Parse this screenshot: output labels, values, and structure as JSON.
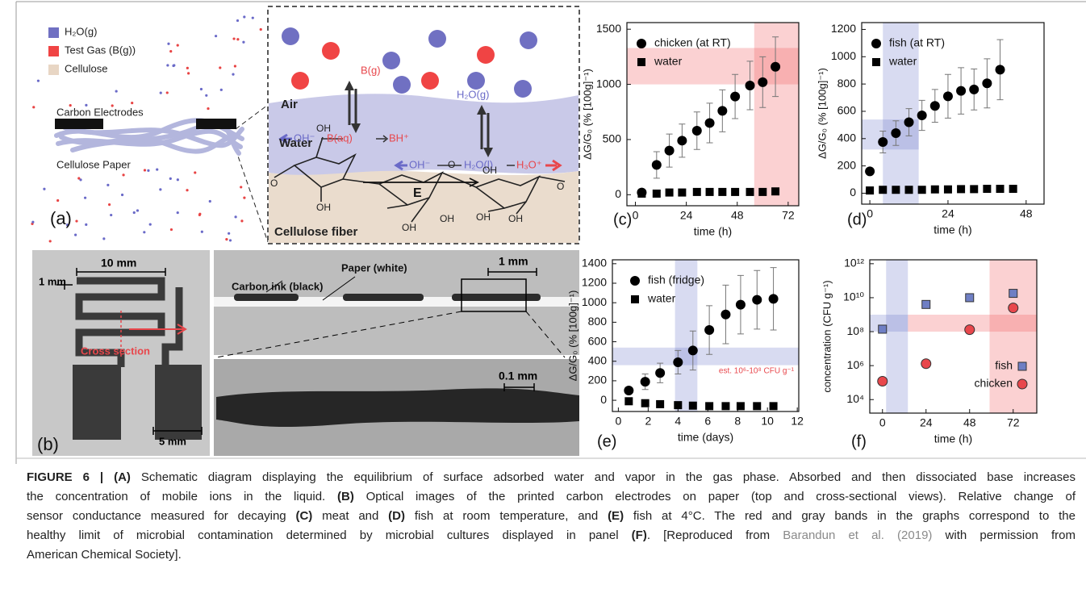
{
  "figure_a": {
    "legend": [
      "H₂O(g)",
      "Test Gas (B(g))",
      "Cellulose"
    ],
    "labels": [
      "Carbon Electrodes",
      "Cellulose Paper"
    ],
    "panel_label": "(a)",
    "zoom_labels": [
      "Air",
      "Water",
      "Cellulose fiber"
    ],
    "species": [
      "B(g)",
      "B(aq)",
      "BH⁺",
      "OH⁻",
      "H₂O(g)",
      "OH⁻",
      "H₂O(l)",
      "H₃O⁺",
      "E"
    ],
    "molecule_labels": [
      "OH",
      "O",
      "OH",
      "OH",
      "O",
      "OH",
      "OH",
      "OH",
      "OH",
      "O"
    ]
  },
  "figure_b": {
    "labels": [
      "10 mm",
      "1 mm",
      "Cross section",
      "5 mm",
      "Paper (white)",
      "Carbon ink (black)",
      "1 mm",
      "0.1 mm"
    ],
    "panel_label": "(b)"
  },
  "chart_data": [
    {
      "type": "scatter",
      "panel_label": "(c)",
      "xlabel": "time (h)",
      "ylabel": "ΔG/G₀ (% [100g]⁻¹)",
      "xlim": [
        -4,
        77
      ],
      "ylim": [
        -100,
        1560
      ],
      "xticks": [
        0,
        24,
        48,
        72
      ],
      "yticks": [
        0,
        500,
        1000,
        1500
      ],
      "legend": "upper left",
      "bands": [
        {
          "y": [
            1000,
            1330
          ],
          "color": "rgba(240,90,95,0.28)"
        },
        {
          "x": [
            56,
            77
          ],
          "color": "rgba(240,90,95,0.28)"
        }
      ],
      "series": [
        {
          "name": "chicken (at RT)",
          "marker": "circle",
          "color": "#000000",
          "x": [
            3,
            10,
            16,
            22,
            29,
            35,
            41,
            47,
            54,
            60,
            66
          ],
          "values": [
            20,
            270,
            400,
            490,
            580,
            650,
            760,
            890,
            990,
            1020,
            1160
          ],
          "errors": [
            10,
            120,
            150,
            150,
            170,
            180,
            190,
            200,
            220,
            230,
            270
          ]
        },
        {
          "name": "water",
          "marker": "square",
          "color": "#000000",
          "x": [
            3,
            10,
            16,
            22,
            29,
            35,
            41,
            47,
            54,
            60,
            66
          ],
          "values": [
            10,
            10,
            20,
            20,
            25,
            25,
            25,
            25,
            25,
            25,
            30
          ]
        }
      ]
    },
    {
      "type": "scatter",
      "panel_label": "(d)",
      "xlabel": "time (h)",
      "ylabel": "ΔG/G₀ (% [100g]⁻¹)",
      "xlim": [
        -2.5,
        53.5
      ],
      "ylim": [
        -80,
        1250
      ],
      "xticks": [
        0,
        24,
        48
      ],
      "yticks": [
        0,
        200,
        400,
        600,
        800,
        1000,
        1200
      ],
      "legend": "upper left",
      "bands": [
        {
          "y": [
            320,
            540
          ],
          "x": [
            -2.5,
            15
          ],
          "color": "rgba(100,110,200,0.25)"
        },
        {
          "x": [
            4,
            15
          ],
          "color": "rgba(100,110,200,0.25)"
        }
      ],
      "series": [
        {
          "name": "fish (at RT)",
          "marker": "circle",
          "color": "#000000",
          "x": [
            0,
            4,
            8,
            12,
            16,
            20,
            24,
            28,
            32,
            36,
            40
          ],
          "values": [
            160,
            375,
            440,
            520,
            570,
            640,
            710,
            750,
            760,
            805,
            905
          ],
          "errors": [
            20,
            80,
            90,
            100,
            110,
            120,
            160,
            170,
            150,
            180,
            220
          ]
        },
        {
          "name": "water",
          "marker": "square",
          "color": "#000000",
          "x": [
            0,
            4,
            8,
            12,
            16,
            20,
            24,
            28,
            32,
            36,
            40,
            44
          ],
          "values": [
            20,
            25,
            25,
            25,
            25,
            28,
            28,
            30,
            30,
            32,
            32,
            32
          ]
        }
      ]
    },
    {
      "type": "scatter",
      "panel_label": "(e)",
      "xlabel": "time (days)",
      "ylabel": "ΔG/G₀ (% [100g]⁻¹)",
      "xlim": [
        -0.4,
        12.1
      ],
      "ylim": [
        -115,
        1440
      ],
      "xticks": [
        0,
        2,
        4,
        6,
        8,
        10,
        12
      ],
      "yticks": [
        0,
        200,
        400,
        600,
        800,
        1000,
        1200,
        1400
      ],
      "legend": "upper left",
      "bands": [
        {
          "y": [
            360,
            540
          ],
          "color": "rgba(100,110,200,0.25)"
        },
        {
          "x": [
            3.8,
            5.3
          ],
          "color": "rgba(100,110,200,0.25)"
        }
      ],
      "annotation": {
        "text": "est. 10⁶-10⁸ CFU g⁻¹",
        "color": "#e8474c"
      },
      "series": [
        {
          "name": "fish (fridge)",
          "marker": "circle",
          "color": "#000000",
          "x": [
            0.7,
            1.8,
            2.8,
            4,
            5,
            6.1,
            7.2,
            8.2,
            9.3,
            10.4
          ],
          "values": [
            100,
            190,
            280,
            390,
            510,
            720,
            880,
            980,
            1030,
            1040
          ],
          "errors": [
            20,
            80,
            100,
            120,
            200,
            250,
            300,
            300,
            300,
            320
          ]
        },
        {
          "name": "water",
          "marker": "square",
          "color": "#000000",
          "x": [
            0.7,
            1.8,
            2.8,
            4,
            5,
            6.1,
            7.2,
            8.2,
            9.3,
            10.4
          ],
          "values": [
            -10,
            -30,
            -40,
            -50,
            -55,
            -60,
            -60,
            -60,
            -60,
            -60
          ]
        }
      ]
    },
    {
      "type": "scatter",
      "panel_label": "(f)",
      "xlabel": "time (h)",
      "ylabel": "concentration (CFU g⁻¹)",
      "xlim": [
        -7,
        85
      ],
      "ylim": [
        1600,
        1700000000000
      ],
      "yscale": "log",
      "xticks": [
        0,
        24,
        48,
        72
      ],
      "yticks": [
        {
          "value": 10000,
          "label": "10⁴"
        },
        {
          "value": 1000000,
          "label": "10⁶"
        },
        {
          "value": 100000000,
          "label": "10⁸"
        },
        {
          "value": 10000000000,
          "label": "10¹⁰"
        },
        {
          "value": 1000000000000,
          "label": "10¹²"
        }
      ],
      "legend": "lower right",
      "bands": [
        {
          "y": [
            100000000,
            1000000000
          ],
          "x": [
            -7,
            14
          ],
          "color": "rgba(100,110,200,0.25)"
        },
        {
          "y": [
            100000000,
            1000000000
          ],
          "x": [
            14,
            85
          ],
          "color": "rgba(240,90,95,0.28)"
        },
        {
          "x": [
            2,
            14
          ],
          "color": "rgba(100,110,200,0.25)"
        },
        {
          "x": [
            59,
            85
          ],
          "color": "rgba(240,90,95,0.28)"
        }
      ],
      "series": [
        {
          "name": "fish",
          "marker": "square",
          "color": "#6f7fc4",
          "x": [
            0,
            24,
            48,
            72
          ],
          "values": [
            140000000,
            4000000000,
            10000000000,
            18000000000
          ]
        },
        {
          "name": "chicken",
          "marker": "circle",
          "color": "#e8474c",
          "x": [
            0,
            24,
            48,
            72
          ],
          "values": [
            120000,
            1300000,
            130000000,
            2500000000
          ]
        }
      ]
    }
  ],
  "caption": {
    "lines": [
      [
        {
          "text": "FIGURE 6 | (A)",
          "bold": true
        },
        {
          "text": " Schematic diagram displaying the equilibrium of surface adsorbed water and vapor in the gas phase. Absorbed and then dissociated base increases"
        }
      ],
      [
        {
          "text": "the concentration of mobile ions in the liquid. "
        },
        {
          "text": "(B)",
          "bold": true
        },
        {
          "text": " Optical images of the printed carbon electrodes on paper (top and cross-sectional views). Relative change of"
        }
      ],
      [
        {
          "text": "sensor conductance measured for decaying "
        },
        {
          "text": "(C)",
          "bold": true
        },
        {
          "text": " meat and "
        },
        {
          "text": "(D)",
          "bold": true
        },
        {
          "text": " fish at room temperature, and "
        },
        {
          "text": "(E)",
          "bold": true
        },
        {
          "text": " fish at 4°C. The red and gray bands in the graphs correspond to the"
        }
      ],
      [
        {
          "text": "healthy limit of microbial contamination determined by microbial cultures displayed in panel "
        },
        {
          "text": "(F)",
          "bold": true
        },
        {
          "text": ". [Reproduced from "
        },
        {
          "text": "Barandun et al. (2019)",
          "link": true
        },
        {
          "text": " with permission from"
        }
      ],
      [
        {
          "text": "American Chemical Society]."
        }
      ]
    ]
  }
}
